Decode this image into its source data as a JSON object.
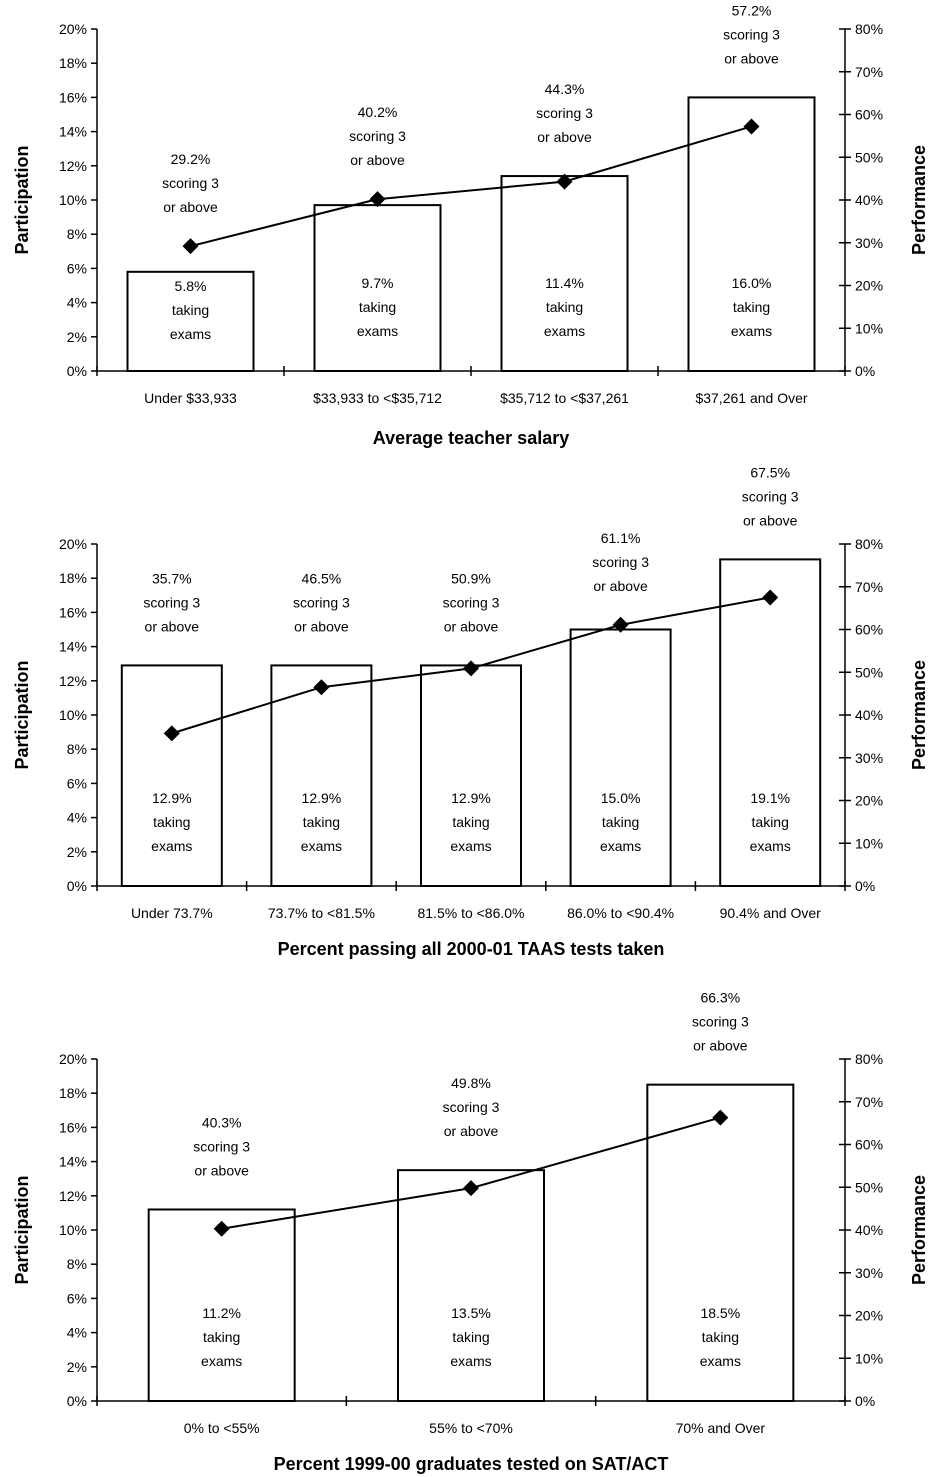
{
  "chart_data": [
    {
      "type": "bar",
      "xlabel": "Average teacher salary",
      "ylabel": "Participation",
      "y2label": "Performance",
      "ylim": [
        0,
        20
      ],
      "y2lim": [
        0,
        80
      ],
      "y_ticks": [
        "0%",
        "2%",
        "4%",
        "6%",
        "8%",
        "10%",
        "12%",
        "14%",
        "16%",
        "18%",
        "20%"
      ],
      "y2_ticks": [
        "0%",
        "10%",
        "20%",
        "30%",
        "40%",
        "50%",
        "60%",
        "70%",
        "80%"
      ],
      "grid": false,
      "categories": [
        "Under $33,933",
        "$33,933 to <$35,712",
        "$35,712 to <$37,261",
        "$37,261 and Over"
      ],
      "series": [
        {
          "type": "bar",
          "axis": "left",
          "values": [
            5.8,
            9.7,
            11.4,
            16.0
          ],
          "labels": [
            [
              "5.8%",
              "taking",
              "exams"
            ],
            [
              "9.7%",
              "taking",
              "exams"
            ],
            [
              "11.4%",
              "taking",
              "exams"
            ],
            [
              "16.0%",
              "taking",
              "exams"
            ]
          ]
        },
        {
          "type": "line",
          "axis": "right",
          "marker": "diamond",
          "values": [
            29.2,
            40.2,
            44.3,
            57.2
          ],
          "labels": [
            [
              "29.2%",
              "scoring 3",
              "or above"
            ],
            [
              "40.2%",
              "scoring 3",
              "or above"
            ],
            [
              "44.3%",
              "scoring 3",
              "or above"
            ],
            [
              "57.2%",
              "scoring 3",
              "or above"
            ]
          ]
        }
      ]
    },
    {
      "type": "bar",
      "xlabel": "Percent passing all 2000-01 TAAS tests taken",
      "ylabel": "Participation",
      "y2label": "Performance",
      "ylim": [
        0,
        20
      ],
      "y2lim": [
        0,
        80
      ],
      "y_ticks": [
        "0%",
        "2%",
        "4%",
        "6%",
        "8%",
        "10%",
        "12%",
        "14%",
        "16%",
        "18%",
        "20%"
      ],
      "y2_ticks": [
        "0%",
        "10%",
        "20%",
        "30%",
        "40%",
        "50%",
        "60%",
        "70%",
        "80%"
      ],
      "grid": false,
      "categories": [
        "Under 73.7%",
        "73.7% to <81.5%",
        "81.5% to <86.0%",
        "86.0% to <90.4%",
        "90.4% and Over"
      ],
      "series": [
        {
          "type": "bar",
          "axis": "left",
          "values": [
            12.9,
            12.9,
            12.9,
            15.0,
            19.1
          ],
          "labels": [
            [
              "12.9%",
              "taking",
              "exams"
            ],
            [
              "12.9%",
              "taking",
              "exams"
            ],
            [
              "12.9%",
              "taking",
              "exams"
            ],
            [
              "15.0%",
              "taking",
              "exams"
            ],
            [
              "19.1%",
              "taking",
              "exams"
            ]
          ]
        },
        {
          "type": "line",
          "axis": "right",
          "marker": "diamond",
          "values": [
            35.7,
            46.5,
            50.9,
            61.1,
            67.5
          ],
          "labels": [
            [
              "35.7%",
              "scoring 3",
              "or above"
            ],
            [
              "46.5%",
              "scoring 3",
              "or above"
            ],
            [
              "50.9%",
              "scoring 3",
              "or above"
            ],
            [
              "61.1%",
              "scoring 3",
              "or above"
            ],
            [
              "67.5%",
              "scoring 3",
              "or above"
            ]
          ]
        }
      ]
    },
    {
      "type": "bar",
      "xlabel": "Percent 1999-00 graduates tested on SAT/ACT",
      "ylabel": "Participation",
      "y2label": "Performance",
      "ylim": [
        0,
        20
      ],
      "y2lim": [
        0,
        80
      ],
      "y_ticks": [
        "0%",
        "2%",
        "4%",
        "6%",
        "8%",
        "10%",
        "12%",
        "14%",
        "16%",
        "18%",
        "20%"
      ],
      "y2_ticks": [
        "0%",
        "10%",
        "20%",
        "30%",
        "40%",
        "50%",
        "60%",
        "70%",
        "80%"
      ],
      "grid": false,
      "categories": [
        "0% to <55%",
        "55% to <70%",
        "70% and Over"
      ],
      "series": [
        {
          "type": "bar",
          "axis": "left",
          "values": [
            11.2,
            13.5,
            18.5
          ],
          "labels": [
            [
              "11.2%",
              "taking",
              "exams"
            ],
            [
              "13.5%",
              "taking",
              "exams"
            ],
            [
              "18.5%",
              "taking",
              "exams"
            ]
          ]
        },
        {
          "type": "line",
          "axis": "right",
          "marker": "diamond",
          "values": [
            40.3,
            49.8,
            66.3
          ],
          "labels": [
            [
              "40.3%",
              "scoring 3",
              "or above"
            ],
            [
              "49.8%",
              "scoring 3",
              "or above"
            ],
            [
              "66.3%",
              "scoring 3",
              "or above"
            ]
          ]
        }
      ]
    }
  ]
}
